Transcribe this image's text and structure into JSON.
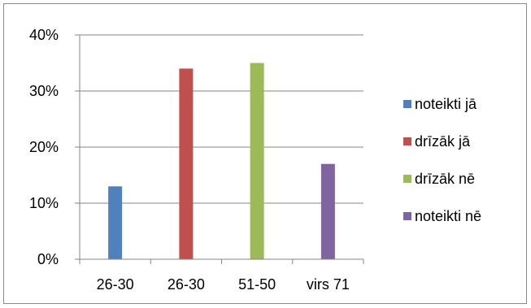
{
  "chart_data": {
    "type": "bar",
    "title": "",
    "xlabel": "",
    "ylabel": "",
    "categories": [
      "26-30",
      "26-30",
      "51-50",
      "virs 71"
    ],
    "ylim": [
      0,
      40
    ],
    "yticks": [
      "0%",
      "10%",
      "20%",
      "30%",
      "40%"
    ],
    "grid": true,
    "legend_position": "right",
    "series": [
      {
        "name": "noteikti jā",
        "color": "#4F81BD",
        "values": [
          13,
          0,
          0,
          0
        ]
      },
      {
        "name": "drīzāk jā",
        "color": "#C0504D",
        "values": [
          0,
          34,
          0,
          0
        ]
      },
      {
        "name": "drīzāk nē",
        "color": "#9BBB59",
        "values": [
          0,
          0,
          35,
          0
        ]
      },
      {
        "name": "noteikti nē",
        "color": "#8064A2",
        "values": [
          0,
          0,
          0,
          17
        ]
      }
    ]
  }
}
